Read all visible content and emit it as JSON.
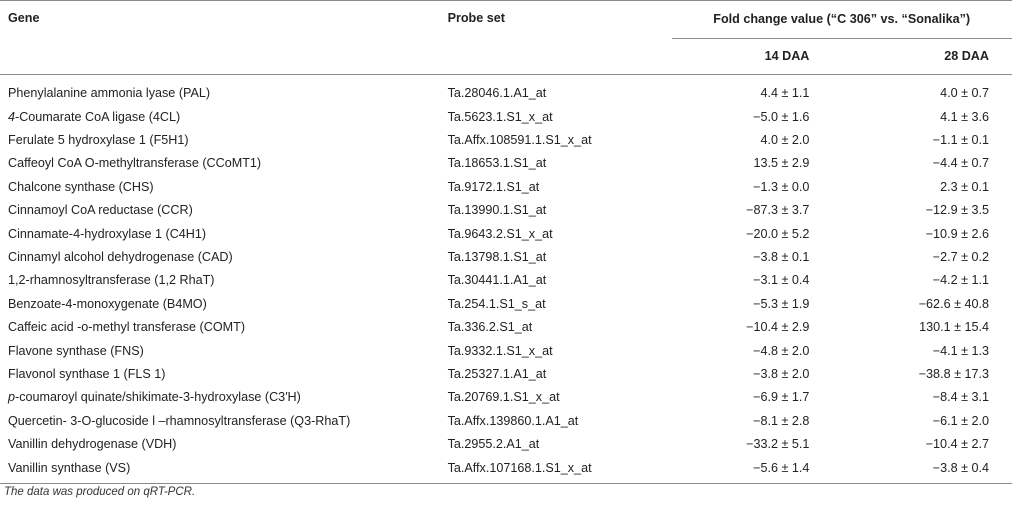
{
  "table": {
    "headers": {
      "gene": "Gene",
      "probe_set": "Probe set",
      "fold_change": "Fold change value (“C 306” vs. “Sonalika”)",
      "daa14": "14 DAA",
      "daa28": "28 DAA"
    },
    "rows": [
      {
        "gene_prefix": "",
        "gene": "Phenylalanine ammonia lyase (PAL)",
        "probe": "Ta.28046.1.A1_at",
        "daa14": "4.4 ± 1.1",
        "daa28": "4.0 ± 0.7"
      },
      {
        "gene_prefix": "4",
        "gene": "-Coumarate CoA ligase (4CL)",
        "probe": "Ta.5623.1.S1_x_at",
        "daa14": "−5.0 ± 1.6",
        "daa28": "4.1 ± 3.6"
      },
      {
        "gene_prefix": "",
        "gene": "Ferulate 5 hydroxylase 1 (F5H1)",
        "probe": "Ta.Affx.108591.1.S1_x_at",
        "daa14": "4.0 ± 2.0",
        "daa28": "−1.1 ± 0.1"
      },
      {
        "gene_prefix": "",
        "gene": "Caffeoyl CoA O-methyltransferase (CCoMT1)",
        "probe": "Ta.18653.1.S1_at",
        "daa14": "13.5 ± 2.9",
        "daa28": "−4.4 ± 0.7"
      },
      {
        "gene_prefix": "",
        "gene": "Chalcone synthase (CHS)",
        "probe": "Ta.9172.1.S1_at",
        "daa14": "−1.3 ± 0.0",
        "daa28": "2.3 ± 0.1"
      },
      {
        "gene_prefix": "",
        "gene": "Cinnamoyl CoA reductase (CCR)",
        "probe": "Ta.13990.1.S1_at",
        "daa14": "−87.3 ± 3.7",
        "daa28": "−12.9 ± 3.5"
      },
      {
        "gene_prefix": "",
        "gene": "Cinnamate-4-hydroxylase 1 (C4H1)",
        "probe": "Ta.9643.2.S1_x_at",
        "daa14": "−20.0 ± 5.2",
        "daa28": "−10.9 ± 2.6"
      },
      {
        "gene_prefix": "",
        "gene": "Cinnamyl alcohol dehydrogenase (CAD)",
        "probe": "Ta.13798.1.S1_at",
        "daa14": "−3.8 ± 0.1",
        "daa28": "−2.7 ± 0.2"
      },
      {
        "gene_prefix": "",
        "gene": "1,2-rhamnosyltransferase (1,2 RhaT)",
        "probe": "Ta.30441.1.A1_at",
        "daa14": "−3.1 ± 0.4",
        "daa28": "−4.2 ± 1.1"
      },
      {
        "gene_prefix": "",
        "gene": "Benzoate-4-monoxygenate (B4MO)",
        "probe": "Ta.254.1.S1_s_at",
        "daa14": "−5.3 ± 1.9",
        "daa28": "−62.6 ± 40.8"
      },
      {
        "gene_prefix": "",
        "gene": "Caffeic acid -o-methyl transferase (COMT)",
        "probe": "Ta.336.2.S1_at",
        "daa14": "−10.4 ± 2.9",
        "daa28": "130.1 ± 15.4"
      },
      {
        "gene_prefix": "",
        "gene": "Flavone synthase (FNS)",
        "probe": "Ta.9332.1.S1_x_at",
        "daa14": "−4.8 ± 2.0",
        "daa28": "−4.1 ± 1.3"
      },
      {
        "gene_prefix": "",
        "gene": "Flavonol synthase 1 (FLS 1)",
        "probe": "Ta.25327.1.A1_at",
        "daa14": "−3.8 ± 2.0",
        "daa28": "−38.8 ± 17.3"
      },
      {
        "gene_prefix": "p",
        "gene": "-coumaroyl quinate/shikimate-3-hydroxylase (C3′H)",
        "probe": "Ta.20769.1.S1_x_at",
        "daa14": "−6.9 ± 1.7",
        "daa28": "−8.4 ± 3.1"
      },
      {
        "gene_prefix": "",
        "gene": "Quercetin- 3-O-glucoside l –rhamnosyltransferase (Q3-RhaT)",
        "probe": "Ta.Affx.139860.1.A1_at",
        "daa14": "−8.1 ± 2.8",
        "daa28": "−6.1 ± 2.0"
      },
      {
        "gene_prefix": "",
        "gene": "Vanillin dehydrogenase (VDH)",
        "probe": "Ta.2955.2.A1_at",
        "daa14": "−33.2 ± 5.1",
        "daa28": "−10.4 ± 2.7"
      },
      {
        "gene_prefix": "",
        "gene": "Vanillin synthase (VS)",
        "probe": "Ta.Affx.107168.1.S1_x_at",
        "daa14": "−5.6 ± 1.4",
        "daa28": "−3.8 ± 0.4"
      }
    ]
  },
  "footnote": "The data was produced on qRT-PCR."
}
